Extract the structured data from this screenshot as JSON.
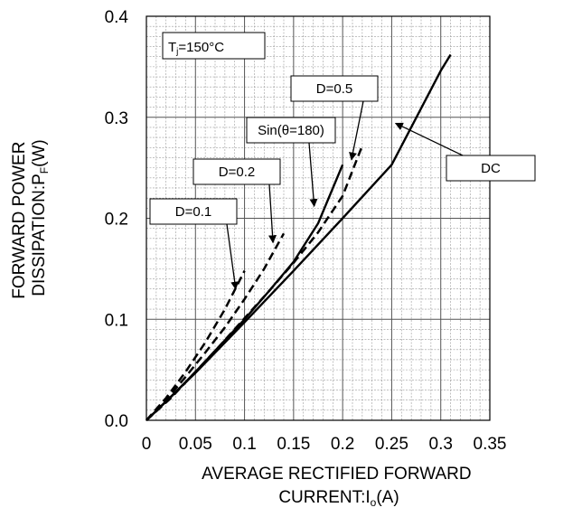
{
  "chart_data": {
    "type": "line",
    "xlabel_lines": [
      "AVERAGE RECTIFIED FORWARD",
      "CURRENT:I",
      "o",
      "(A)"
    ],
    "ylabel_lines": [
      "FORWARD POWER",
      "DISSIPATION:P",
      "F",
      "(W)"
    ],
    "xlim": [
      0,
      0.35
    ],
    "ylim": [
      0,
      0.4
    ],
    "x_ticks": [
      "0",
      "0.05",
      "0.1",
      "0.15",
      "0.2",
      "0.25",
      "0.3",
      "0.35"
    ],
    "y_ticks": [
      "0.0",
      "0.1",
      "0.2",
      "0.3",
      "0.4"
    ],
    "x_tick_values": [
      0,
      0.05,
      0.1,
      0.15,
      0.2,
      0.25,
      0.3,
      0.35
    ],
    "y_tick_values": [
      0,
      0.1,
      0.2,
      0.3,
      0.4
    ],
    "grid": true,
    "minor_grid": {
      "x_step": 0.01,
      "y_step": 0.01
    },
    "condition_label": {
      "prefix": "T",
      "sub": "j",
      "suffix": "=150°C"
    },
    "series": [
      {
        "name": "D=0.1",
        "style": "dashed",
        "x": [
          0,
          0.02,
          0.04,
          0.06,
          0.08,
          0.1
        ],
        "y": [
          0,
          0.022,
          0.048,
          0.077,
          0.11,
          0.148
        ]
      },
      {
        "name": "D=0.2",
        "style": "dashed",
        "x": [
          0,
          0.02,
          0.04,
          0.06,
          0.08,
          0.1,
          0.12,
          0.14
        ],
        "y": [
          0,
          0.02,
          0.043,
          0.067,
          0.092,
          0.12,
          0.15,
          0.185
        ]
      },
      {
        "name": "D=0.5",
        "style": "dashed",
        "x": [
          0,
          0.025,
          0.05,
          0.075,
          0.1,
          0.125,
          0.15,
          0.175,
          0.2,
          0.22
        ],
        "y": [
          0,
          0.022,
          0.048,
          0.074,
          0.101,
          0.128,
          0.156,
          0.186,
          0.222,
          0.272
        ]
      },
      {
        "name": "Sin(θ=180)",
        "style": "solid",
        "x": [
          0,
          0.025,
          0.05,
          0.075,
          0.1,
          0.125,
          0.15,
          0.175,
          0.2
        ],
        "y": [
          0,
          0.023,
          0.048,
          0.074,
          0.1,
          0.128,
          0.157,
          0.195,
          0.253
        ]
      },
      {
        "name": "DC",
        "style": "solid",
        "x": [
          0,
          0.05,
          0.1,
          0.15,
          0.2,
          0.25,
          0.3,
          0.31
        ],
        "y": [
          0,
          0.047,
          0.097,
          0.148,
          0.2,
          0.253,
          0.346,
          0.362
        ]
      }
    ],
    "annotations": [
      {
        "label": "D=0.1",
        "arrow_to": [
          0.091,
          0.13
        ]
      },
      {
        "label": "D=0.2",
        "arrow_to": [
          0.129,
          0.176
        ]
      },
      {
        "label": "D=0.5",
        "arrow_to": [
          0.209,
          0.258
        ]
      },
      {
        "label": "Sin(θ=180)",
        "arrow_to": [
          0.171,
          0.212
        ]
      },
      {
        "label": "DC",
        "arrow_to": [
          0.254,
          0.294
        ]
      }
    ]
  }
}
